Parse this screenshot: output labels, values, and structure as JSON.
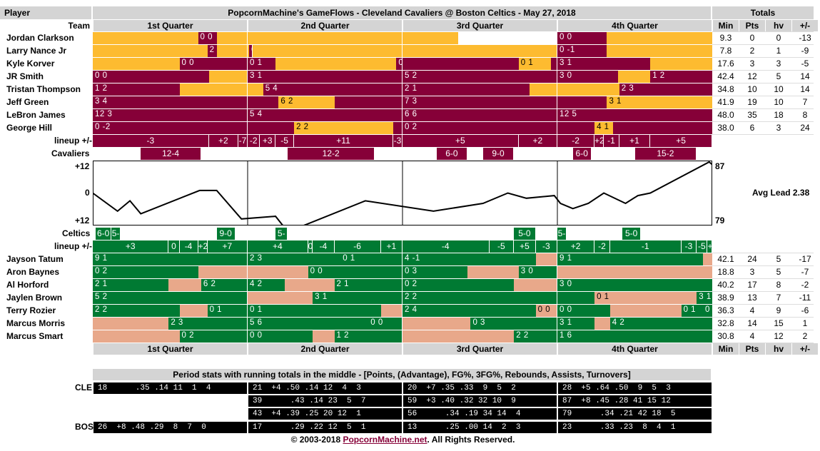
{
  "colors": {
    "cle": "#860038",
    "cle_alt": "#fdbb30",
    "bos": "#007a33",
    "bos_alt": "#e8a88a",
    "head": "#d4d4d4",
    "black": "#000000"
  },
  "header": {
    "player": "Player",
    "title": "PopcornMachine's GameFlows - Cleveland Cavaliers @ Boston Celtics - May 27, 2018",
    "totals": "Totals",
    "team": "Team"
  },
  "quarters": [
    "1st Quarter",
    "2nd Quarter",
    "3rd Quarter",
    "4th Quarter"
  ],
  "stat_headers": [
    "Min",
    "Pts",
    "hv",
    "+/-"
  ],
  "cle_players": [
    {
      "name": "Jordan Clarkson",
      "stats": [
        "9.3",
        "0",
        "0",
        "-13"
      ],
      "segs": [
        [
          0,
          0.68,
          "l",
          ""
        ],
        [
          0.68,
          0.8,
          "d",
          "0 0"
        ],
        [
          0.8,
          1.77,
          "l",
          ""
        ],
        [
          1.77,
          2.36,
          "l",
          ""
        ],
        [
          3.0,
          3.32,
          "d",
          "0 0"
        ],
        [
          3.32,
          4.0,
          "l",
          ""
        ]
      ],
      "rows_text": []
    },
    {
      "name": "Larry Nance Jr",
      "stats": [
        "7.8",
        "2",
        "1",
        "-9"
      ],
      "segs": [
        [
          0,
          0.74,
          "l",
          ""
        ],
        [
          0.74,
          0.8,
          "d",
          "2 2"
        ],
        [
          0.8,
          1.01,
          "l",
          ""
        ],
        [
          1.01,
          1.03,
          "d",
          "0 0"
        ],
        [
          1.03,
          3.0,
          "l",
          ""
        ],
        [
          3.0,
          3.32,
          "d",
          "0 -1"
        ],
        [
          3.32,
          4.0,
          "l",
          ""
        ]
      ]
    },
    {
      "name": "Kyle Korver",
      "stats": [
        "17.6",
        "3",
        "3",
        "-5"
      ],
      "segs": [
        [
          0,
          0.56,
          "l",
          ""
        ],
        [
          0.56,
          1.0,
          "d",
          "0 0"
        ],
        [
          1.0,
          1.18,
          "d",
          "0 1"
        ],
        [
          1.18,
          1.96,
          "l",
          ""
        ],
        [
          1.96,
          2.0,
          "d",
          "0"
        ],
        [
          2.0,
          2.75,
          "d",
          ""
        ],
        [
          2.75,
          2.96,
          "l",
          "0 1"
        ],
        [
          2.96,
          3.0,
          "d",
          ""
        ],
        [
          3.0,
          3.6,
          "d",
          "3 1"
        ],
        [
          3.6,
          4.0,
          "l",
          ""
        ]
      ]
    },
    {
      "name": "JR Smith",
      "stats": [
        "42.4",
        "12",
        "5",
        "14"
      ],
      "segs": [
        [
          0,
          0.75,
          "d",
          "0 0"
        ],
        [
          0.75,
          1.0,
          "l",
          ""
        ],
        [
          1.0,
          2.0,
          "d",
          "3 1"
        ],
        [
          2.0,
          3.0,
          "d",
          "5 2"
        ],
        [
          3.0,
          3.39,
          "d",
          "3 0"
        ],
        [
          3.39,
          3.6,
          "l",
          ""
        ],
        [
          3.6,
          4.0,
          "d",
          "1 2"
        ]
      ]
    },
    {
      "name": "Tristan Thompson",
      "stats": [
        "34.8",
        "10",
        "10",
        "14"
      ],
      "segs": [
        [
          0,
          0.56,
          "d",
          "1 2"
        ],
        [
          0.56,
          1.1,
          "l",
          ""
        ],
        [
          1.1,
          1.7,
          "d",
          "5 4"
        ],
        [
          1.7,
          2.0,
          "d",
          ""
        ],
        [
          2.0,
          2.82,
          "d",
          "2 1"
        ],
        [
          2.82,
          3.0,
          "l",
          ""
        ],
        [
          3.0,
          3.4,
          "l",
          ""
        ],
        [
          3.4,
          4.0,
          "d",
          "2 3"
        ]
      ]
    },
    {
      "name": "Jeff Green",
      "stats": [
        "41.9",
        "19",
        "10",
        "7"
      ],
      "segs": [
        [
          0,
          1.0,
          "d",
          "3 4"
        ],
        [
          1.0,
          1.2,
          "d",
          ""
        ],
        [
          1.2,
          1.56,
          "l",
          "6 2"
        ],
        [
          1.56,
          2.0,
          "d",
          ""
        ],
        [
          2.0,
          3.0,
          "d",
          "7 3"
        ],
        [
          3.0,
          3.32,
          "d",
          ""
        ],
        [
          3.32,
          4.0,
          "l",
          "3 1"
        ]
      ]
    },
    {
      "name": "LeBron James",
      "stats": [
        "48.0",
        "35",
        "18",
        "8"
      ],
      "segs": [
        [
          0,
          1.0,
          "d",
          "12 3"
        ],
        [
          1.0,
          2.0,
          "d",
          "5 4"
        ],
        [
          2.0,
          3.0,
          "d",
          "6 6"
        ],
        [
          3.0,
          4.0,
          "d",
          "12 5"
        ]
      ]
    },
    {
      "name": "George Hill",
      "stats": [
        "38.0",
        "6",
        "3",
        "24"
      ],
      "segs": [
        [
          0,
          1.0,
          "d",
          "0 -2"
        ],
        [
          1.0,
          1.3,
          "d",
          ""
        ],
        [
          1.3,
          1.94,
          "l",
          "2 2"
        ],
        [
          1.94,
          2.0,
          "d",
          ""
        ],
        [
          2.0,
          2.0,
          "d",
          ""
        ],
        [
          2.0,
          3.0,
          "d",
          "0 2"
        ],
        [
          3.0,
          3.24,
          "d",
          ""
        ],
        [
          3.24,
          3.36,
          "l",
          "4 1"
        ],
        [
          3.36,
          4.0,
          "d",
          ""
        ]
      ]
    }
  ],
  "bos_players": [
    {
      "name": "Jayson Tatum",
      "stats": [
        "42.1",
        "24",
        "5",
        "-17"
      ],
      "segs": [
        [
          0,
          1.0,
          "d",
          "9 1"
        ],
        [
          1.0,
          1.6,
          "d",
          "2 3"
        ],
        [
          1.6,
          1.6,
          "d",
          ""
        ],
        [
          1.6,
          2.0,
          "d",
          "0 1"
        ],
        [
          2.0,
          2.86,
          "d",
          "4 -1"
        ],
        [
          2.86,
          3.0,
          "l",
          ""
        ],
        [
          3.0,
          3.94,
          "d",
          "9 1"
        ],
        [
          3.94,
          4.0,
          "l",
          ""
        ]
      ]
    },
    {
      "name": "Aron Baynes",
      "stats": [
        "18.8",
        "3",
        "5",
        "-7"
      ],
      "segs": [
        [
          0,
          0.68,
          "d",
          "0 2"
        ],
        [
          0.68,
          1.0,
          "l",
          ""
        ],
        [
          1.0,
          1.39,
          "l",
          ""
        ],
        [
          1.39,
          2.0,
          "d",
          "0 0"
        ],
        [
          2.0,
          2.42,
          "d",
          "0 3"
        ],
        [
          2.42,
          2.75,
          "l",
          ""
        ],
        [
          2.75,
          3.0,
          "d",
          "3 0"
        ],
        [
          3.0,
          4.0,
          "l",
          ""
        ]
      ]
    },
    {
      "name": "Al Horford",
      "stats": [
        "40.2",
        "17",
        "8",
        "-2"
      ],
      "segs": [
        [
          0,
          0.49,
          "d",
          "2 1"
        ],
        [
          0.49,
          0.7,
          "l",
          ""
        ],
        [
          0.7,
          1.0,
          "d",
          "6 2"
        ],
        [
          1.0,
          1.24,
          "d",
          "4 2"
        ],
        [
          1.24,
          1.56,
          "l",
          ""
        ],
        [
          1.56,
          2.0,
          "d",
          "2 1"
        ],
        [
          2.0,
          2.72,
          "d",
          "0 2"
        ],
        [
          2.72,
          3.0,
          "l",
          ""
        ],
        [
          3.0,
          4.0,
          "d",
          "3 0"
        ]
      ]
    },
    {
      "name": "Jaylen Brown",
      "stats": [
        "38.9",
        "13",
        "7",
        "-11"
      ],
      "segs": [
        [
          0,
          1.0,
          "d",
          "5 2"
        ],
        [
          1.0,
          1.42,
          "l",
          ""
        ],
        [
          1.42,
          2.0,
          "d",
          "3 1"
        ],
        [
          2.0,
          3.0,
          "d",
          "2 2"
        ],
        [
          3.0,
          3.24,
          "d",
          ""
        ],
        [
          3.24,
          3.8,
          "l",
          "0 1"
        ],
        [
          3.8,
          3.9,
          "l",
          ""
        ],
        [
          3.9,
          4.0,
          "d",
          "3 1"
        ]
      ]
    },
    {
      "name": "Terry Rozier",
      "stats": [
        "36.3",
        "4",
        "9",
        "-6"
      ],
      "segs": [
        [
          0,
          0.56,
          "d",
          "2 2"
        ],
        [
          0.56,
          0.74,
          "l",
          ""
        ],
        [
          0.74,
          1.0,
          "d",
          "0 1"
        ],
        [
          1.0,
          1.86,
          "d",
          "0 1"
        ],
        [
          1.86,
          2.0,
          "l",
          ""
        ],
        [
          2.0,
          2.86,
          "d",
          "2 4"
        ],
        [
          2.86,
          3.0,
          "l",
          "0 0"
        ],
        [
          3.0,
          3.34,
          "d",
          "0 0"
        ],
        [
          3.34,
          3.8,
          "l",
          ""
        ],
        [
          3.8,
          3.94,
          "d",
          "0 1"
        ],
        [
          3.94,
          4.0,
          "d",
          "0"
        ]
      ]
    },
    {
      "name": "Marcus Morris",
      "stats": [
        "32.8",
        "14",
        "15",
        "1"
      ],
      "segs": [
        [
          0,
          0.49,
          "l",
          ""
        ],
        [
          0.49,
          1.0,
          "d",
          "2 3"
        ],
        [
          1.0,
          1.78,
          "d",
          "5 6"
        ],
        [
          1.78,
          2.0,
          "d",
          "0 0"
        ],
        [
          2.0,
          2.44,
          "l",
          ""
        ],
        [
          2.44,
          3.0,
          "d",
          "0 3"
        ],
        [
          3.0,
          3.24,
          "d",
          "3 1"
        ],
        [
          3.24,
          3.34,
          "l",
          ""
        ],
        [
          3.34,
          4.0,
          "d",
          "4 2"
        ]
      ]
    },
    {
      "name": "Marcus Smart",
      "stats": [
        "30.8",
        "4",
        "12",
        "2"
      ],
      "segs": [
        [
          0,
          0.56,
          "l",
          ""
        ],
        [
          0.56,
          1.0,
          "d",
          "0 2"
        ],
        [
          1.0,
          1.42,
          "d",
          "0 0"
        ],
        [
          1.42,
          1.56,
          "l",
          ""
        ],
        [
          1.56,
          2.0,
          "d",
          "1 2"
        ],
        [
          2.0,
          2.72,
          "l",
          ""
        ],
        [
          2.72,
          3.0,
          "d",
          "2 2"
        ],
        [
          3.0,
          4.0,
          "d",
          "1 6"
        ]
      ]
    }
  ],
  "cle_lineup": {
    "label": "lineup +/-",
    "cells": [
      [
        0,
        0.75,
        "-3"
      ],
      [
        0.75,
        0.94,
        "+2"
      ],
      [
        0.94,
        1.0,
        "-7"
      ],
      [
        1.0,
        1.08,
        "-2"
      ],
      [
        1.08,
        1.18,
        "+3"
      ],
      [
        1.18,
        1.3,
        "-5"
      ],
      [
        1.3,
        1.94,
        "+11"
      ],
      [
        1.94,
        2.0,
        "-3"
      ],
      [
        2.0,
        2.75,
        "+5"
      ],
      [
        2.75,
        3.0,
        "+2"
      ],
      [
        3.0,
        3.24,
        "-2"
      ],
      [
        3.24,
        3.3,
        "+2"
      ],
      [
        3.3,
        3.4,
        "-1"
      ],
      [
        3.4,
        3.6,
        "+1"
      ],
      [
        3.6,
        4.0,
        "+5"
      ]
    ]
  },
  "cle_runs": {
    "label": "Cavaliers",
    "cells": [
      [
        0.31,
        0.7,
        "12-4"
      ],
      [
        1.26,
        1.82,
        "12-2"
      ],
      [
        2.22,
        2.42,
        "6-0"
      ],
      [
        2.52,
        2.72,
        "9-0"
      ],
      [
        3.1,
        3.22,
        "6-0"
      ],
      [
        3.5,
        3.9,
        "15-2"
      ]
    ]
  },
  "bos_runs": {
    "label": "Celtics",
    "cells": [
      [
        0.02,
        0.12,
        "6-0"
      ],
      [
        0.12,
        0.18,
        "5-"
      ],
      [
        0.8,
        0.92,
        "9-0"
      ],
      [
        1.18,
        1.26,
        "5-0"
      ],
      [
        2.72,
        2.86,
        "5-0"
      ],
      [
        3.0,
        3.06,
        "5-"
      ],
      [
        3.42,
        3.54,
        "5-0"
      ]
    ]
  },
  "bos_lineup": {
    "label": "lineup +/-",
    "cells": [
      [
        0,
        0.49,
        "+3"
      ],
      [
        0.49,
        0.56,
        "0"
      ],
      [
        0.56,
        0.68,
        "-4"
      ],
      [
        0.68,
        0.74,
        "+2"
      ],
      [
        0.74,
        1.0,
        "+7"
      ],
      [
        1.0,
        1.39,
        "+4"
      ],
      [
        1.39,
        1.42,
        "0"
      ],
      [
        1.42,
        1.56,
        "-4"
      ],
      [
        1.56,
        1.86,
        "-6"
      ],
      [
        1.86,
        2.0,
        "+1"
      ],
      [
        2.0,
        2.56,
        "-4"
      ],
      [
        2.56,
        2.72,
        "-5"
      ],
      [
        2.72,
        2.86,
        "+5"
      ],
      [
        2.86,
        3.0,
        "-3"
      ],
      [
        3.0,
        3.24,
        "+2"
      ],
      [
        3.24,
        3.34,
        "-2"
      ],
      [
        3.34,
        3.8,
        "-1"
      ],
      [
        3.8,
        3.9,
        "-3"
      ],
      [
        3.9,
        3.97,
        "-5"
      ],
      [
        3.97,
        4.0,
        "+4"
      ]
    ]
  },
  "chart_data": {
    "type": "line",
    "title": "",
    "y_top_label": "+12",
    "y_mid_label": "0",
    "y_bottom_label": "+12",
    "right_top": "87",
    "right_bottom": "79",
    "avg_lead": "Avg Lead 2.38",
    "ylim": [
      -12,
      12
    ],
    "x": [
      0,
      0.16,
      0.24,
      0.31,
      0.69,
      0.8,
      0.96,
      1.18,
      1.3,
      1.76,
      2.2,
      2.52,
      2.68,
      2.8,
      2.98,
      3.1,
      3.24,
      3.44,
      4.0
    ],
    "values": [
      0,
      -8,
      -3,
      -9,
      1,
      1,
      -10,
      -10,
      -13,
      -3,
      -7,
      -5,
      0,
      -4,
      -8,
      -6,
      -8,
      -9,
      -10
    ]
  },
  "lead_points": [
    [
      0,
      0
    ],
    [
      0.16,
      -7
    ],
    [
      0.24,
      -3
    ],
    [
      0.31,
      -8
    ],
    [
      0.69,
      1
    ],
    [
      0.8,
      1
    ],
    [
      0.96,
      -10
    ],
    [
      1.18,
      -9
    ],
    [
      1.26,
      -15
    ],
    [
      1.76,
      -3
    ],
    [
      2.2,
      -7
    ],
    [
      2.52,
      -4
    ],
    [
      2.68,
      0
    ],
    [
      2.8,
      -2
    ],
    [
      2.98,
      -1
    ],
    [
      3.02,
      -4
    ],
    [
      3.1,
      -6
    ],
    [
      3.2,
      -4
    ],
    [
      3.3,
      0
    ],
    [
      3.44,
      -4
    ],
    [
      3.52,
      -1
    ],
    [
      3.6,
      0
    ],
    [
      3.98,
      12
    ],
    [
      4.0,
      11
    ]
  ],
  "period": {
    "title": "Period stats with running totals in the middle - [Points, (Advantage), FG%, 3FG%, Rebounds, Assists, Turnovers]",
    "cle_label": "CLE",
    "bos_label": "BOS",
    "rows": [
      [
        "18      .35 .14 11  1  4",
        "21  +4 .50 .14 12  4  3",
        "20  +7 .35 .33  9  5  2",
        "28  +5 .64 .50  9  5  3"
      ],
      [
        "",
        "39      .43 .14 23  5  7",
        "59  +3 .40 .32 32 10  9",
        "87  +8 .45 .28 41 15 12"
      ],
      [
        "",
        "43  +4 .39 .25 20 12  1",
        "56      .34 .19 34 14  4",
        "79      .34 .21 42 18  5"
      ],
      [
        "26  +8 .48 .29  8  7  0",
        "17      .29 .22 12  5  1",
        "13      .25 .00 14  2  3",
        "23      .33 .23  8  4  1"
      ]
    ]
  },
  "footer": {
    "pre": "© 2003-2018 ",
    "link": "PopcornMachine.net",
    "post": ". All Rights Reserved."
  }
}
